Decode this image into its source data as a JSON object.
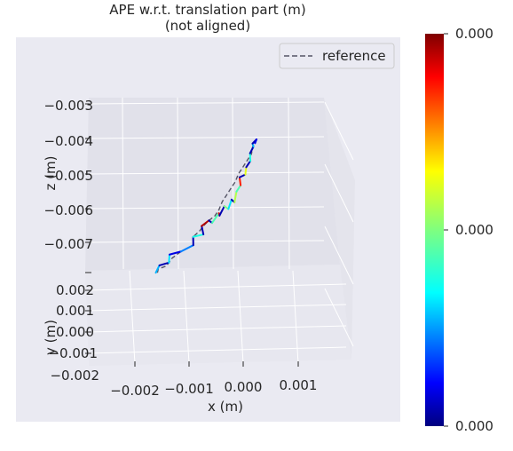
{
  "chart_data": {
    "type": "line",
    "projection": "3d",
    "title": "APE w.r.t. translation part (m)",
    "subtitle": "(not aligned)",
    "xlabel": "x (m)",
    "ylabel": "y (m)",
    "zlabel": "z (m)",
    "x_ticks": [
      "−0.002",
      "−0.001",
      "0.000",
      "0.001"
    ],
    "y_ticks": [
      "0.002",
      "0.001",
      "0.000",
      "−0.001",
      "−0.002"
    ],
    "z_ticks": [
      "−0.003",
      "−0.004",
      "−0.005",
      "−0.006",
      "−0.007"
    ],
    "legend": {
      "entries": [
        "reference"
      ],
      "location": "top-right"
    },
    "colorbar": {
      "colormap": "jet",
      "tick_labels": [
        "0.000",
        "0.000",
        "0.000"
      ]
    },
    "grid": true,
    "series": [
      {
        "name": "reference",
        "style": "dashed",
        "points": [
          [
            -0.00165,
            0.0005,
            -0.0078
          ],
          [
            -0.00162,
            0.0004,
            -0.0077
          ],
          [
            -0.0015,
            0.0006,
            -0.0076
          ],
          [
            -0.00135,
            0.0003,
            -0.0074
          ],
          [
            -0.0012,
            0.0004,
            -0.0072
          ],
          [
            -0.001,
            0.0006,
            -0.007
          ],
          [
            -0.00095,
            0.0002,
            -0.0068
          ],
          [
            -0.00085,
            0.0004,
            -0.0066
          ],
          [
            -0.00075,
            0.0001,
            -0.0065
          ],
          [
            -0.0007,
            0.0005,
            -0.0063
          ],
          [
            -0.00055,
            0.0002,
            -0.0062
          ],
          [
            -0.0005,
            0.0004,
            -0.006
          ],
          [
            -0.0004,
            0.0001,
            -0.0058
          ],
          [
            -0.00035,
            0.0003,
            -0.0056
          ],
          [
            -0.00025,
            0.0002,
            -0.0054
          ],
          [
            -0.0002,
            0.0004,
            -0.0052
          ],
          [
            -0.0001,
            0.0001,
            -0.005
          ],
          [
            -5e-05,
            0.0003,
            -0.0048
          ],
          [
            5e-05,
            0.0002,
            -0.0046
          ],
          [
            0.0001,
            0.0004,
            -0.0044
          ],
          [
            0.00015,
            0.0002,
            -0.0042
          ],
          [
            0.0002,
            0.0003,
            -0.004
          ]
        ]
      }
    ],
    "trajectory": {
      "points": [
        [
          -0.00168,
          0.0005,
          -0.0078,
          0.3
        ],
        [
          -0.0016,
          0.0004,
          -0.0076,
          0.05
        ],
        [
          -0.00145,
          0.0006,
          -0.0075,
          0.35
        ],
        [
          -0.0014,
          0.0003,
          -0.0073,
          0.1
        ],
        [
          -0.0012,
          0.0004,
          -0.0072,
          0.25
        ],
        [
          -0.001,
          0.0006,
          -0.007,
          0.05
        ],
        [
          -0.00095,
          0.0002,
          -0.0068,
          0.4
        ],
        [
          -0.0008,
          0.0005,
          -0.0067,
          0.05
        ],
        [
          -0.00078,
          0.0001,
          -0.0065,
          0.95
        ],
        [
          -0.0007,
          0.0005,
          -0.0063,
          0.05
        ],
        [
          -0.0006,
          0.0002,
          -0.0064,
          0.45
        ],
        [
          -0.0005,
          0.0004,
          -0.0061,
          0.9
        ],
        [
          -0.00045,
          0.0001,
          -0.0062,
          0.05
        ],
        [
          -0.0004,
          0.0004,
          -0.0059,
          0.5
        ],
        [
          -0.0003,
          0.0002,
          -0.006,
          0.35
        ],
        [
          -0.00028,
          0.0005,
          -0.0057,
          0.05
        ],
        [
          -0.0002,
          0.0003,
          -0.0058,
          0.55
        ],
        [
          -0.00015,
          0.0002,
          -0.0055,
          0.45
        ],
        [
          -0.0001,
          0.0004,
          -0.0053,
          0.85
        ],
        [
          -8e-05,
          0.0001,
          -0.0051,
          0.05
        ],
        [
          0.0,
          0.0003,
          -0.005,
          0.6
        ],
        [
          3e-05,
          0.0002,
          -0.0048,
          0.05
        ],
        [
          8e-05,
          0.0004,
          -0.0046,
          0.4
        ],
        [
          0.0001,
          0.0002,
          -0.0044,
          0.05
        ],
        [
          0.00015,
          0.0003,
          -0.0042,
          0.3
        ],
        [
          0.00012,
          0.0004,
          -0.0041,
          0.05
        ],
        [
          0.00022,
          0.0002,
          -0.004,
          0.1
        ],
        [
          0.00018,
          0.0003,
          -0.0041,
          0.05
        ]
      ]
    }
  }
}
